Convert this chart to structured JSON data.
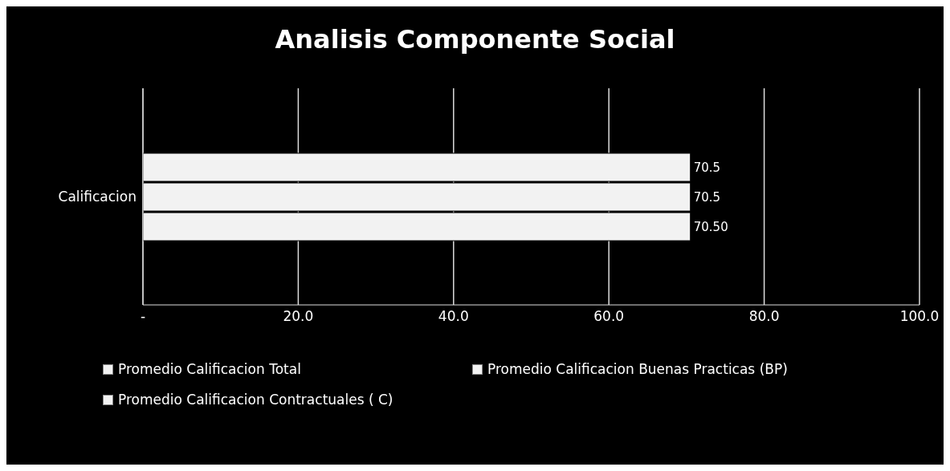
{
  "chart_data": {
    "type": "bar",
    "orientation": "horizontal",
    "title": "Analisis Componente Social",
    "categories": [
      "Calificacion"
    ],
    "series": [
      {
        "name": "Promedio Calificacion Total",
        "color": "#f2f2f2",
        "values": [
          70.5
        ],
        "value_labels": [
          "70.5"
        ]
      },
      {
        "name": "Promedio Calificacion Buenas Practicas  (BP)",
        "color": "#f2f2f2",
        "values": [
          70.5
        ],
        "value_labels": [
          "70.5"
        ]
      },
      {
        "name": "Promedio Calificacion Contractuales ( C)",
        "color": "#f2f2f2",
        "values": [
          70.5
        ],
        "value_labels": [
          "70.50"
        ]
      }
    ],
    "xlim": [
      0,
      100
    ],
    "xticks": [
      {
        "value": 0,
        "label": "-"
      },
      {
        "value": 20,
        "label": "20.0"
      },
      {
        "value": 40,
        "label": "40.0"
      },
      {
        "value": 60,
        "label": "60.0"
      },
      {
        "value": 80,
        "label": "80.0"
      },
      {
        "value": 100,
        "label": "100.0"
      }
    ],
    "grid": "x",
    "legend": "bottom"
  }
}
